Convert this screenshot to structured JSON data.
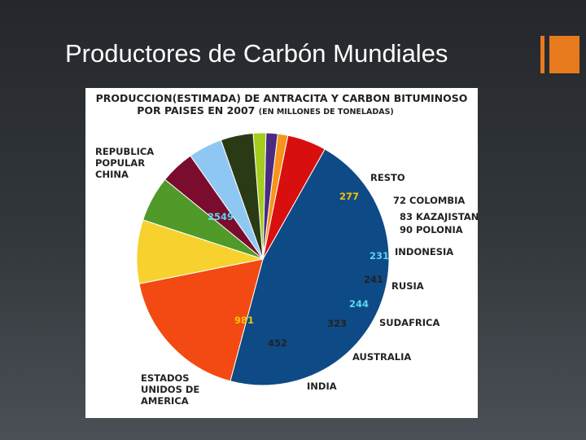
{
  "slide": {
    "title": "Productores de Carbón Mundiales",
    "accent_color": "#e87a1e"
  },
  "chart_data": {
    "type": "pie",
    "title_line1": "PRODUCCION(ESTIMADA) DE ANTRACITA Y CARBON BITUMINOSO",
    "title_line2": "POR PAISES EN 2007",
    "title_unit": "(EN MILLONES DE TONELADAS)",
    "slices": [
      {
        "label": [
          "REPUBLICA",
          "POPULAR",
          "CHINA"
        ],
        "value": 2549,
        "value_label": "2549",
        "color": "#0e4a86",
        "value_color": "#5cd6f0"
      },
      {
        "label": [
          "RESTO"
        ],
        "value": 277,
        "value_label": "277",
        "color": "#d90f0f",
        "value_color": "#f4c400"
      },
      {
        "label": [
          "COLOMBIA"
        ],
        "value": 72,
        "value_label": "72",
        "color": "#f7941d",
        "value_color": "#222222"
      },
      {
        "label": [
          "KAZAJISTAN"
        ],
        "value": 83,
        "value_label": "83",
        "color": "#4b2a82",
        "value_color": "#222222"
      },
      {
        "label": [
          "POLONIA"
        ],
        "value": 90,
        "value_label": "90",
        "color": "#a4cd1e",
        "value_color": "#222222"
      },
      {
        "label": [
          "INDONESIA"
        ],
        "value": 231,
        "value_label": "231",
        "color": "#2a3a15",
        "value_color": "#5cd6f0"
      },
      {
        "label": [
          "RUSIA"
        ],
        "value": 241,
        "value_label": "241",
        "color": "#8ec8f2",
        "value_color": "#222222"
      },
      {
        "label": [
          "SUDAFRICA"
        ],
        "value": 244,
        "value_label": "244",
        "color": "#7a0d2e",
        "value_color": "#5cd6f0"
      },
      {
        "label": [
          "AUSTRALIA"
        ],
        "value": 323,
        "value_label": "323",
        "color": "#4f9a28",
        "value_color": "#222222"
      },
      {
        "label": [
          "INDIA"
        ],
        "value": 452,
        "value_label": "452",
        "color": "#f7d22e",
        "value_color": "#222222"
      },
      {
        "label": [
          "ESTADOS",
          "UNIDOS DE",
          "AMERICA"
        ],
        "value": 981,
        "value_label": "981",
        "color": "#f24a12",
        "value_color": "#f4c400"
      }
    ],
    "legend_placement": "labels around the pie"
  }
}
